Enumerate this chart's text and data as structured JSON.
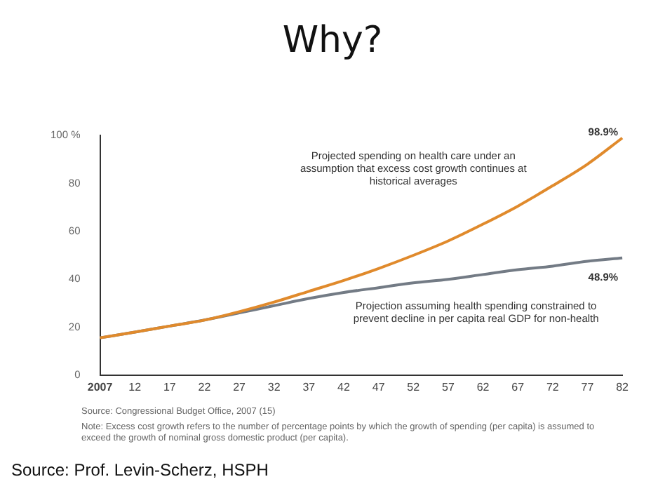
{
  "chart_data": {
    "type": "line",
    "title": "Why?",
    "categories": [
      "2007",
      "12",
      "17",
      "22",
      "27",
      "32",
      "37",
      "42",
      "47",
      "52",
      "57",
      "62",
      "67",
      "72",
      "77",
      "82"
    ],
    "series": [
      {
        "color": "#e08a2c",
        "values": [
          15.6,
          18,
          20.5,
          23,
          26.5,
          30.5,
          35,
          39.5,
          44.5,
          50,
          56,
          63,
          70.5,
          79,
          88,
          98.9
        ],
        "value_labels": [
          null,
          null,
          null,
          null,
          null,
          null,
          null,
          null,
          null,
          null,
          null,
          null,
          null,
          null,
          null,
          "98.9%"
        ]
      },
      {
        "color": "#737b85",
        "values": [
          15.6,
          18,
          20.5,
          23,
          26,
          29,
          32,
          34.5,
          36.5,
          38.5,
          40,
          42,
          44,
          45.5,
          47.5,
          48.9
        ],
        "value_labels": [
          null,
          null,
          null,
          null,
          null,
          null,
          null,
          null,
          null,
          null,
          null,
          null,
          null,
          null,
          null,
          "48.9%"
        ]
      }
    ],
    "ylim": [
      0,
      100
    ],
    "yticks": [
      0,
      20,
      40,
      60,
      80,
      {
        "value": 100,
        "label": "100 %"
      }
    ],
    "grid": false,
    "legend": false,
    "marker": "none",
    "line_style": "solid",
    "annotations": [
      "Projected spending on health care under an assumption that excess cost growth continues at historical averages",
      "Projection assuming health spending constrained to prevent decline in per capita real GDP for non-health",
      "Source: Congressional Budget Office, 2007 (15)",
      "Note: Excess cost growth refers to the number of percentage points by which the growth of spending (per capita) is assumed to exceed the growth of nominal gross domestic product (per capita).",
      "Source: Prof. Levin-Scherz, HSPH"
    ]
  }
}
